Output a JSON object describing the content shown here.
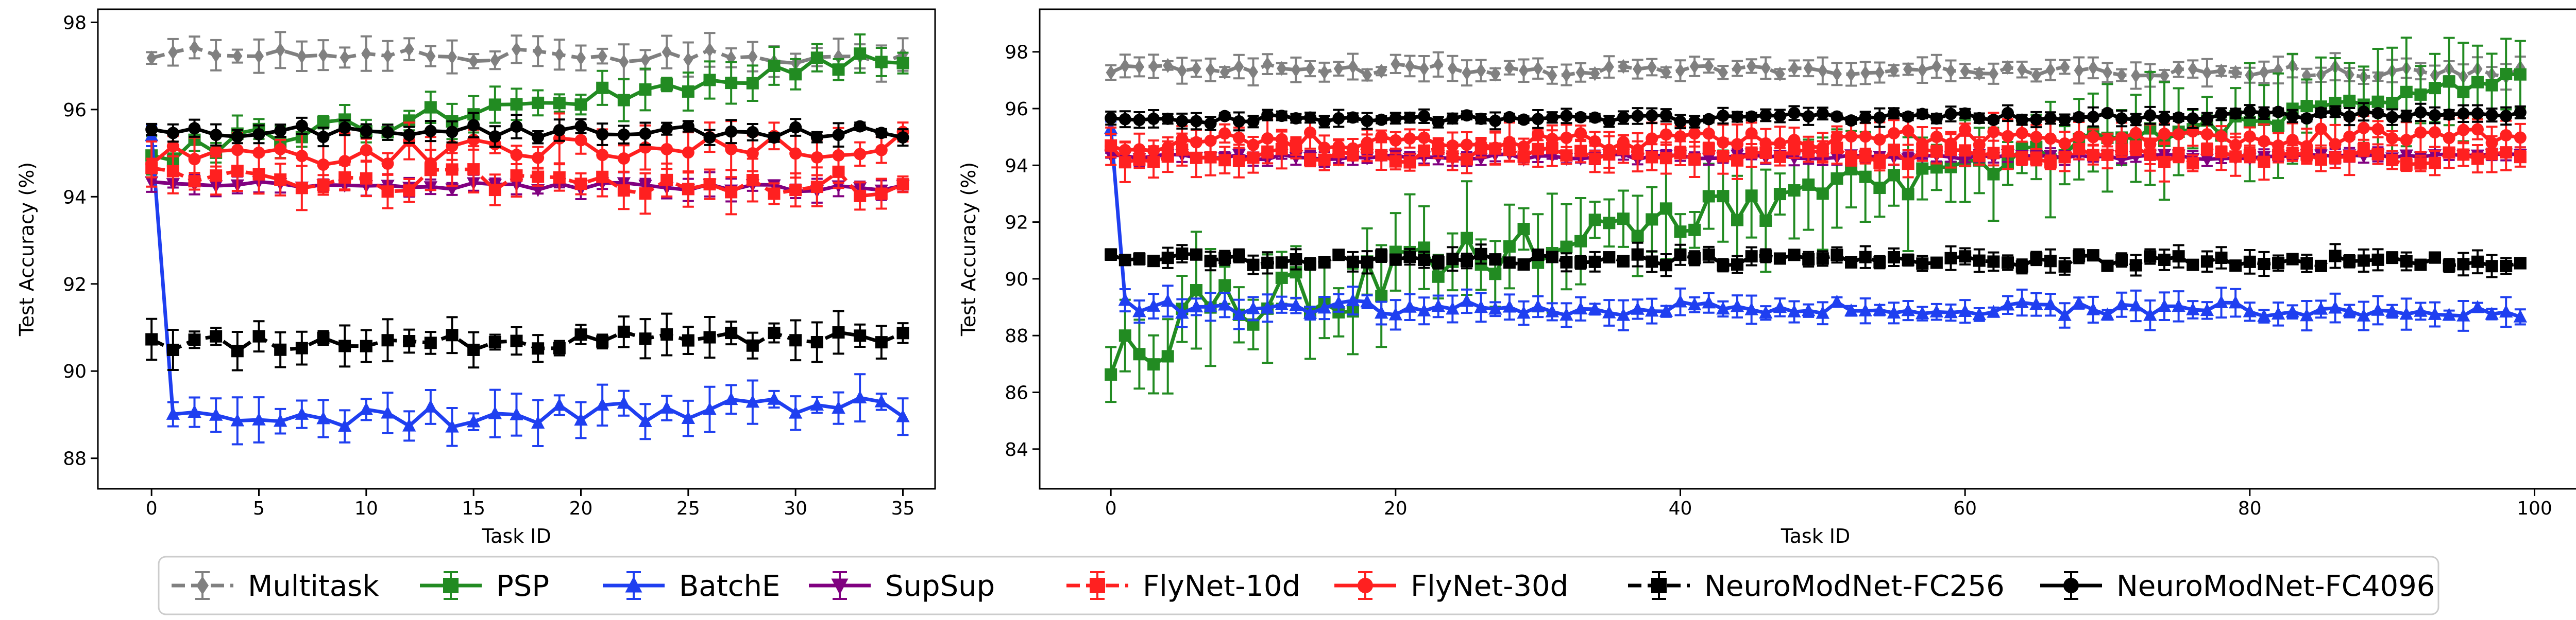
{
  "figure": {
    "legend": [
      {
        "name": "Multitask",
        "color": "#808080",
        "marker": "diamond",
        "dashed": true
      },
      {
        "name": "PSP",
        "color": "#228b22",
        "marker": "square",
        "dashed": false
      },
      {
        "name": "BatchE",
        "color": "#1f3ff0",
        "marker": "triangle-up",
        "dashed": false
      },
      {
        "name": "SupSup",
        "color": "#800080",
        "marker": "triangle-down",
        "dashed": false
      },
      {
        "name": "FlyNet-10d",
        "color": "#ff2020",
        "marker": "square",
        "dashed": true
      },
      {
        "name": "FlyNet-30d",
        "color": "#ff2020",
        "marker": "circle",
        "dashed": false
      },
      {
        "name": "NeuroModNet-FC256",
        "color": "#000000",
        "marker": "square",
        "dashed": true
      },
      {
        "name": "NeuroModNet-FC4096",
        "color": "#000000",
        "marker": "circle",
        "dashed": false
      }
    ]
  },
  "chart_data": [
    {
      "type": "line",
      "xlabel": "Task ID",
      "ylabel": "Test Accuracy (%)",
      "xlim": [
        -2.5,
        36.5
      ],
      "ylim": [
        87.3,
        98.3
      ],
      "xticks": [
        0,
        5,
        10,
        15,
        20,
        25,
        30,
        35
      ],
      "yticks": [
        88,
        90,
        92,
        94,
        96,
        98
      ],
      "error_bars": true,
      "grid": false,
      "series": [
        {
          "name": "Multitask",
          "x_start": 0,
          "x_end": 35,
          "y_start": 97.3,
          "y_end": 97.2,
          "trend": 0.0,
          "noise": 0.15,
          "err": 0.3,
          "wave": 0.0
        },
        {
          "name": "PSP",
          "x_start": 0,
          "x_end": 35,
          "y_start": 95.0,
          "y_end": 97.2,
          "trend": 0.0,
          "noise": 0.25,
          "err": 0.35,
          "wave": 0.0
        },
        {
          "name": "BatchE",
          "x_start": 1,
          "x_end": 35,
          "y_start": 88.8,
          "y_end": 89.2,
          "trend": 0.0,
          "noise": 0.25,
          "err": 0.4,
          "wave": 0.0,
          "first": {
            "x": 0,
            "y": 95.4
          }
        },
        {
          "name": "SupSup",
          "x_start": 0,
          "x_end": 35,
          "y_start": 94.3,
          "y_end": 94.2,
          "trend": 0.0,
          "noise": 0.1,
          "err": 0.2,
          "wave": 0.0
        },
        {
          "name": "FlyNet-10d",
          "x_start": 0,
          "x_end": 35,
          "y_start": 94.4,
          "y_end": 94.3,
          "trend": 0.0,
          "noise": 0.3,
          "err": 0.4,
          "wave": 0.0
        },
        {
          "name": "FlyNet-30d",
          "x_start": 0,
          "x_end": 35,
          "y_start": 94.9,
          "y_end": 95.2,
          "trend": 0.0,
          "noise": 0.3,
          "err": 0.5,
          "wave": 0.0
        },
        {
          "name": "NeuroModNet-FC256",
          "x_start": 0,
          "x_end": 35,
          "y_start": 90.6,
          "y_end": 90.8,
          "trend": 0.0,
          "noise": 0.2,
          "err": 0.35,
          "wave": 0.0
        },
        {
          "name": "NeuroModNet-FC4096",
          "x_start": 0,
          "x_end": 35,
          "y_start": 95.5,
          "y_end": 95.5,
          "trend": 0.0,
          "noise": 0.15,
          "err": 0.2,
          "wave": 0.0
        }
      ]
    },
    {
      "type": "line",
      "xlabel": "Task ID",
      "ylabel": "Test Accuracy (%)",
      "xlim": [
        -5,
        104
      ],
      "ylim": [
        82.6,
        99.5
      ],
      "xticks": [
        0,
        20,
        40,
        60,
        80,
        100
      ],
      "yticks": [
        84,
        86,
        88,
        90,
        92,
        94,
        96,
        98
      ],
      "error_bars": true,
      "grid": false,
      "series": [
        {
          "name": "Multitask",
          "x_start": 0,
          "x_end": 99,
          "y_start": 97.4,
          "y_end": 97.3,
          "trend": 0.0,
          "noise": 0.2,
          "err": 0.35,
          "wave": 0.0
        },
        {
          "name": "PSP",
          "x_start": 0,
          "x_end": 99,
          "y_start": 87.5,
          "y_end": 97.1,
          "trend": 0.0,
          "noise": 1.0,
          "err": 1.5,
          "wave": 0.0
        },
        {
          "name": "BatchE",
          "x_start": 1,
          "x_end": 99,
          "y_start": 89.0,
          "y_end": 88.9,
          "trend": 0.0,
          "noise": 0.25,
          "err": 0.4,
          "wave": 0.0,
          "first": {
            "x": 0,
            "y": 95.3
          }
        },
        {
          "name": "SupSup",
          "x_start": 0,
          "x_end": 99,
          "y_start": 94.3,
          "y_end": 94.3,
          "trend": 0.0,
          "noise": 0.1,
          "err": 0.2,
          "wave": 0.0
        },
        {
          "name": "FlyNet-10d",
          "x_start": 0,
          "x_end": 99,
          "y_start": 94.4,
          "y_end": 94.3,
          "trend": 0.0,
          "noise": 0.3,
          "err": 0.5,
          "wave": 0.0
        },
        {
          "name": "FlyNet-30d",
          "x_start": 0,
          "x_end": 99,
          "y_start": 94.8,
          "y_end": 95.0,
          "trend": 0.0,
          "noise": 0.35,
          "err": 0.5,
          "wave": 0.0
        },
        {
          "name": "NeuroModNet-FC256",
          "x_start": 0,
          "x_end": 99,
          "y_start": 90.7,
          "y_end": 90.6,
          "trend": 0.0,
          "noise": 0.2,
          "err": 0.3,
          "wave": 0.0
        },
        {
          "name": "NeuroModNet-FC4096",
          "x_start": 0,
          "x_end": 99,
          "y_start": 95.6,
          "y_end": 95.8,
          "trend": 0.0,
          "noise": 0.15,
          "err": 0.25,
          "wave": 0.0
        }
      ]
    }
  ]
}
